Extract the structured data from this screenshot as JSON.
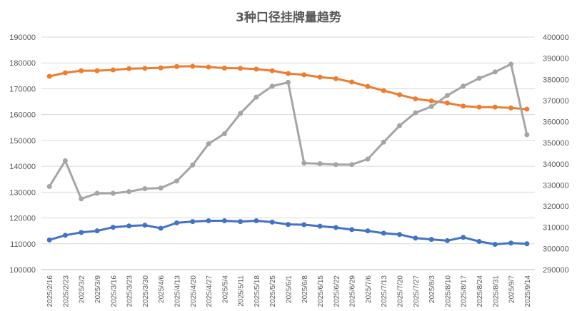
{
  "chart_data": {
    "type": "line",
    "title": "3种口径挂牌量趋势",
    "xlabel": "",
    "ylabel": "",
    "grid": true,
    "legend": "none",
    "categories": [
      "2025/2/16",
      "2025/2/23",
      "2025/3/2",
      "2025/3/9",
      "2025/3/16",
      "2025/3/23",
      "2025/3/30",
      "2025/4/6",
      "2025/4/13",
      "2025/4/20",
      "2025/4/27",
      "2025/5/4",
      "2025/5/11",
      "2025/5/18",
      "2025/5/25",
      "2025/6/1",
      "2025/6/8",
      "2025/6/15",
      "2025/6/22",
      "2025/6/29",
      "2025/7/6",
      "2025/7/13",
      "2025/7/20",
      "2025/7/27",
      "2025/8/3",
      "2025/8/10",
      "2025/8/17",
      "2025/8/24",
      "2025/8/31",
      "2025/9/7",
      "2025/9/14"
    ],
    "y_left": {
      "ylim": [
        100000,
        190000
      ],
      "ticks": [
        "100000",
        "110000",
        "120000",
        "130000",
        "140000",
        "150000",
        "160000",
        "170000",
        "180000",
        "190000"
      ]
    },
    "y_right": {
      "ylim": [
        290000,
        400000
      ],
      "ticks": [
        "290000",
        "300000",
        "310000",
        "320000",
        "330000",
        "340000",
        "350000",
        "360000",
        "370000",
        "380000",
        "390000",
        "400000"
      ]
    },
    "series": [
      {
        "axis": "left",
        "color": "#4472C4",
        "values": [
          111500,
          113300,
          114400,
          115000,
          116400,
          116900,
          117200,
          116000,
          118100,
          118600,
          118900,
          118900,
          118600,
          118900,
          118400,
          117500,
          117400,
          116800,
          116300,
          115500,
          115000,
          114100,
          113600,
          112200,
          111700,
          111200,
          112500,
          110900,
          109800,
          110300,
          110000
        ]
      },
      {
        "axis": "left",
        "color": "#ED7D31",
        "values": [
          174800,
          176200,
          177000,
          177000,
          177300,
          177800,
          177900,
          178100,
          178600,
          178700,
          178400,
          178000,
          177900,
          177600,
          177000,
          175900,
          175400,
          174500,
          173900,
          172600,
          170900,
          169300,
          167700,
          166100,
          165300,
          164500,
          163300,
          162900,
          162900,
          162600,
          162100
        ]
      },
      {
        "axis": "right",
        "color": "#A5A5A5",
        "values": [
          329300,
          341500,
          323500,
          326100,
          326100,
          326900,
          328300,
          328600,
          331900,
          339500,
          349500,
          354300,
          363900,
          371600,
          376800,
          378600,
          340400,
          340100,
          339700,
          339700,
          342300,
          350300,
          358100,
          364200,
          367100,
          372400,
          376800,
          380500,
          383500,
          387200,
          353800
        ]
      }
    ]
  }
}
